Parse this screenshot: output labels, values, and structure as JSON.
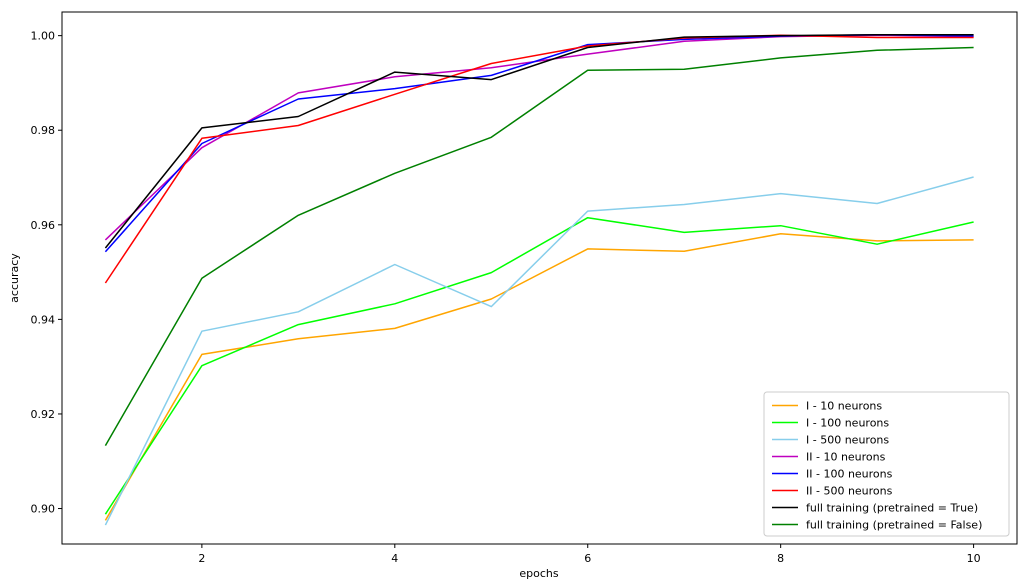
{
  "chart_data": {
    "type": "line",
    "title": "",
    "xlabel": "epochs",
    "ylabel": "accuracy",
    "xlim": [
      0.55,
      10.45
    ],
    "ylim": [
      0.8925,
      1.005
    ],
    "x_ticks": [
      2,
      4,
      6,
      8,
      10
    ],
    "y_ticks": [
      0.9,
      0.92,
      0.94,
      0.96,
      0.98,
      1.0
    ],
    "y_tick_labels": [
      "0.90",
      "0.92",
      "0.94",
      "0.96",
      "0.98",
      "1.00"
    ],
    "grid": false,
    "legend_position": "lower-right",
    "x": [
      1,
      2,
      3,
      4,
      5,
      6,
      7,
      8,
      9,
      10
    ],
    "series": [
      {
        "name": "I - 10 neurons",
        "color": "#ffa500",
        "values": [
          0.8975,
          0.9326,
          0.9359,
          0.9381,
          0.9443,
          0.9549,
          0.9544,
          0.9581,
          0.9566,
          0.9568
        ]
      },
      {
        "name": "I - 100 neurons",
        "color": "#00ff00",
        "values": [
          0.8988,
          0.9302,
          0.9389,
          0.9433,
          0.9499,
          0.9615,
          0.9584,
          0.9598,
          0.9559,
          0.9606
        ]
      },
      {
        "name": "I - 500 neurons",
        "color": "#87ceeb",
        "values": [
          0.8965,
          0.9375,
          0.9416,
          0.9516,
          0.9427,
          0.9629,
          0.9643,
          0.9666,
          0.9645,
          0.9701
        ]
      },
      {
        "name": "II - 10 neurons",
        "color": "#bf00bf",
        "values": [
          0.9568,
          0.9763,
          0.9879,
          0.9913,
          0.9932,
          0.9961,
          0.9988,
          0.9998,
          1.0001,
          0.9998
        ]
      },
      {
        "name": "II - 100 neurons",
        "color": "#0000ff",
        "values": [
          0.9543,
          0.9772,
          0.9866,
          0.9888,
          0.9916,
          0.9981,
          0.9992,
          0.9999,
          1.0002,
          0.9999
        ]
      },
      {
        "name": "II - 500 neurons",
        "color": "#ff0000",
        "values": [
          0.9477,
          0.9783,
          0.981,
          0.9876,
          0.9941,
          0.9978,
          0.9995,
          1.0001,
          0.9996,
          0.9996
        ]
      },
      {
        "name": "full training (pretrained = True)",
        "color": "#000000",
        "values": [
          0.9551,
          0.9805,
          0.9829,
          0.9923,
          0.9907,
          0.9975,
          0.9997,
          1.0,
          1.0002,
          1.0002
        ]
      },
      {
        "name": "full training (pretrained = False)",
        "color": "#008000",
        "values": [
          0.9133,
          0.9487,
          0.962,
          0.9709,
          0.9785,
          0.9927,
          0.9929,
          0.9953,
          0.9969,
          0.9975
        ]
      }
    ]
  }
}
